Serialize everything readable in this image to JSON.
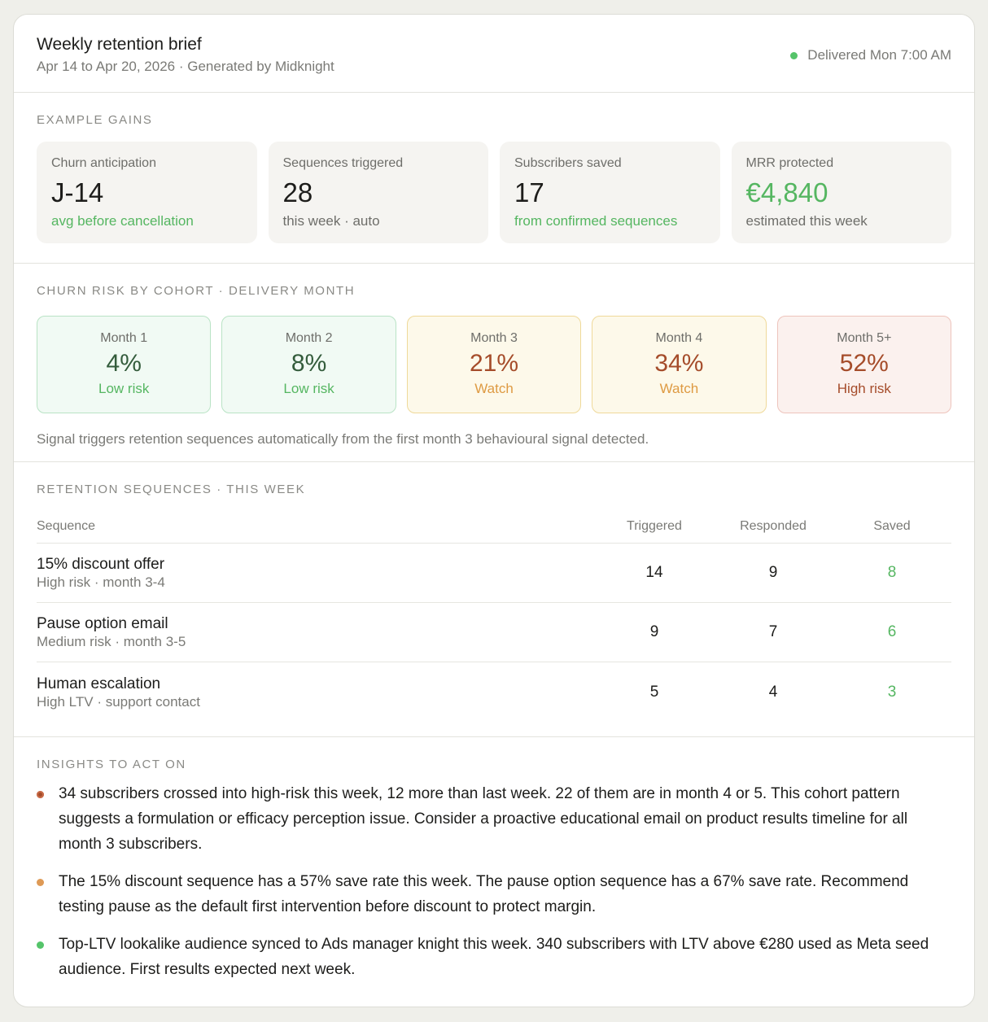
{
  "header": {
    "title": "Weekly retention brief",
    "subtitle": "Apr 14 to Apr 20, 2026 · Generated by Midknight",
    "delivered": "Delivered Mon 7:00 AM",
    "status_color": "#55c46a"
  },
  "gains": {
    "label": "EXAMPLE GAINS",
    "cards": [
      {
        "label": "Churn anticipation",
        "value": "J-14",
        "sub": "avg before cancellation"
      },
      {
        "label": "Sequences triggered",
        "value": "28",
        "sub": "this week · auto"
      },
      {
        "label": "Subscribers saved",
        "value": "17",
        "sub": "from confirmed sequences"
      },
      {
        "label": "MRR protected",
        "value": "€4,840",
        "sub": "estimated this week"
      }
    ]
  },
  "cohort": {
    "label": "CHURN RISK BY COHORT · DELIVERY MONTH",
    "boxes": [
      {
        "month": "Month 1",
        "pct": "4%",
        "risk": "Low risk"
      },
      {
        "month": "Month 2",
        "pct": "8%",
        "risk": "Low risk"
      },
      {
        "month": "Month 3",
        "pct": "21%",
        "risk": "Watch"
      },
      {
        "month": "Month 4",
        "pct": "34%",
        "risk": "Watch"
      },
      {
        "month": "Month 5+",
        "pct": "52%",
        "risk": "High risk"
      }
    ],
    "note": "Signal triggers retention sequences automatically from the first month 3 behavioural signal detected."
  },
  "sequences": {
    "label": "RETENTION SEQUENCES · THIS WEEK",
    "columns": {
      "name": "Sequence",
      "triggered": "Triggered",
      "responded": "Responded",
      "saved": "Saved"
    },
    "rows": [
      {
        "name": "15% discount offer",
        "desc": "High risk · month 3-4",
        "triggered": "14",
        "responded": "9",
        "saved": "8"
      },
      {
        "name": "Pause option email",
        "desc": "Medium risk · month 3-5",
        "triggered": "9",
        "responded": "7",
        "saved": "6"
      },
      {
        "name": "Human escalation",
        "desc": "High LTV · support contact",
        "triggered": "5",
        "responded": "4",
        "saved": "3"
      }
    ]
  },
  "insights": {
    "label": "INSIGHTS TO ACT ON",
    "items": [
      {
        "text": "34 subscribers crossed into high-risk this week, 12 more than last week. 22 of them are in month 4 or 5. This cohort pattern suggests a formulation or efficacy perception issue. Consider a proactive educational email on product results timeline for all month 3 subscribers.",
        "color": "#a54c2a"
      },
      {
        "text": "The 15% discount sequence has a 57% save rate this week. The pause option sequence has a 67% save rate. Recommend testing pause as the default first intervention before discount to protect margin.",
        "color": "#de9a56"
      },
      {
        "text": "Top-LTV lookalike audience synced to Ads manager knight this week. 340 subscribers with LTV above €280 used as Meta seed audience. First results expected next week.",
        "color": "#55c46a"
      }
    ]
  }
}
